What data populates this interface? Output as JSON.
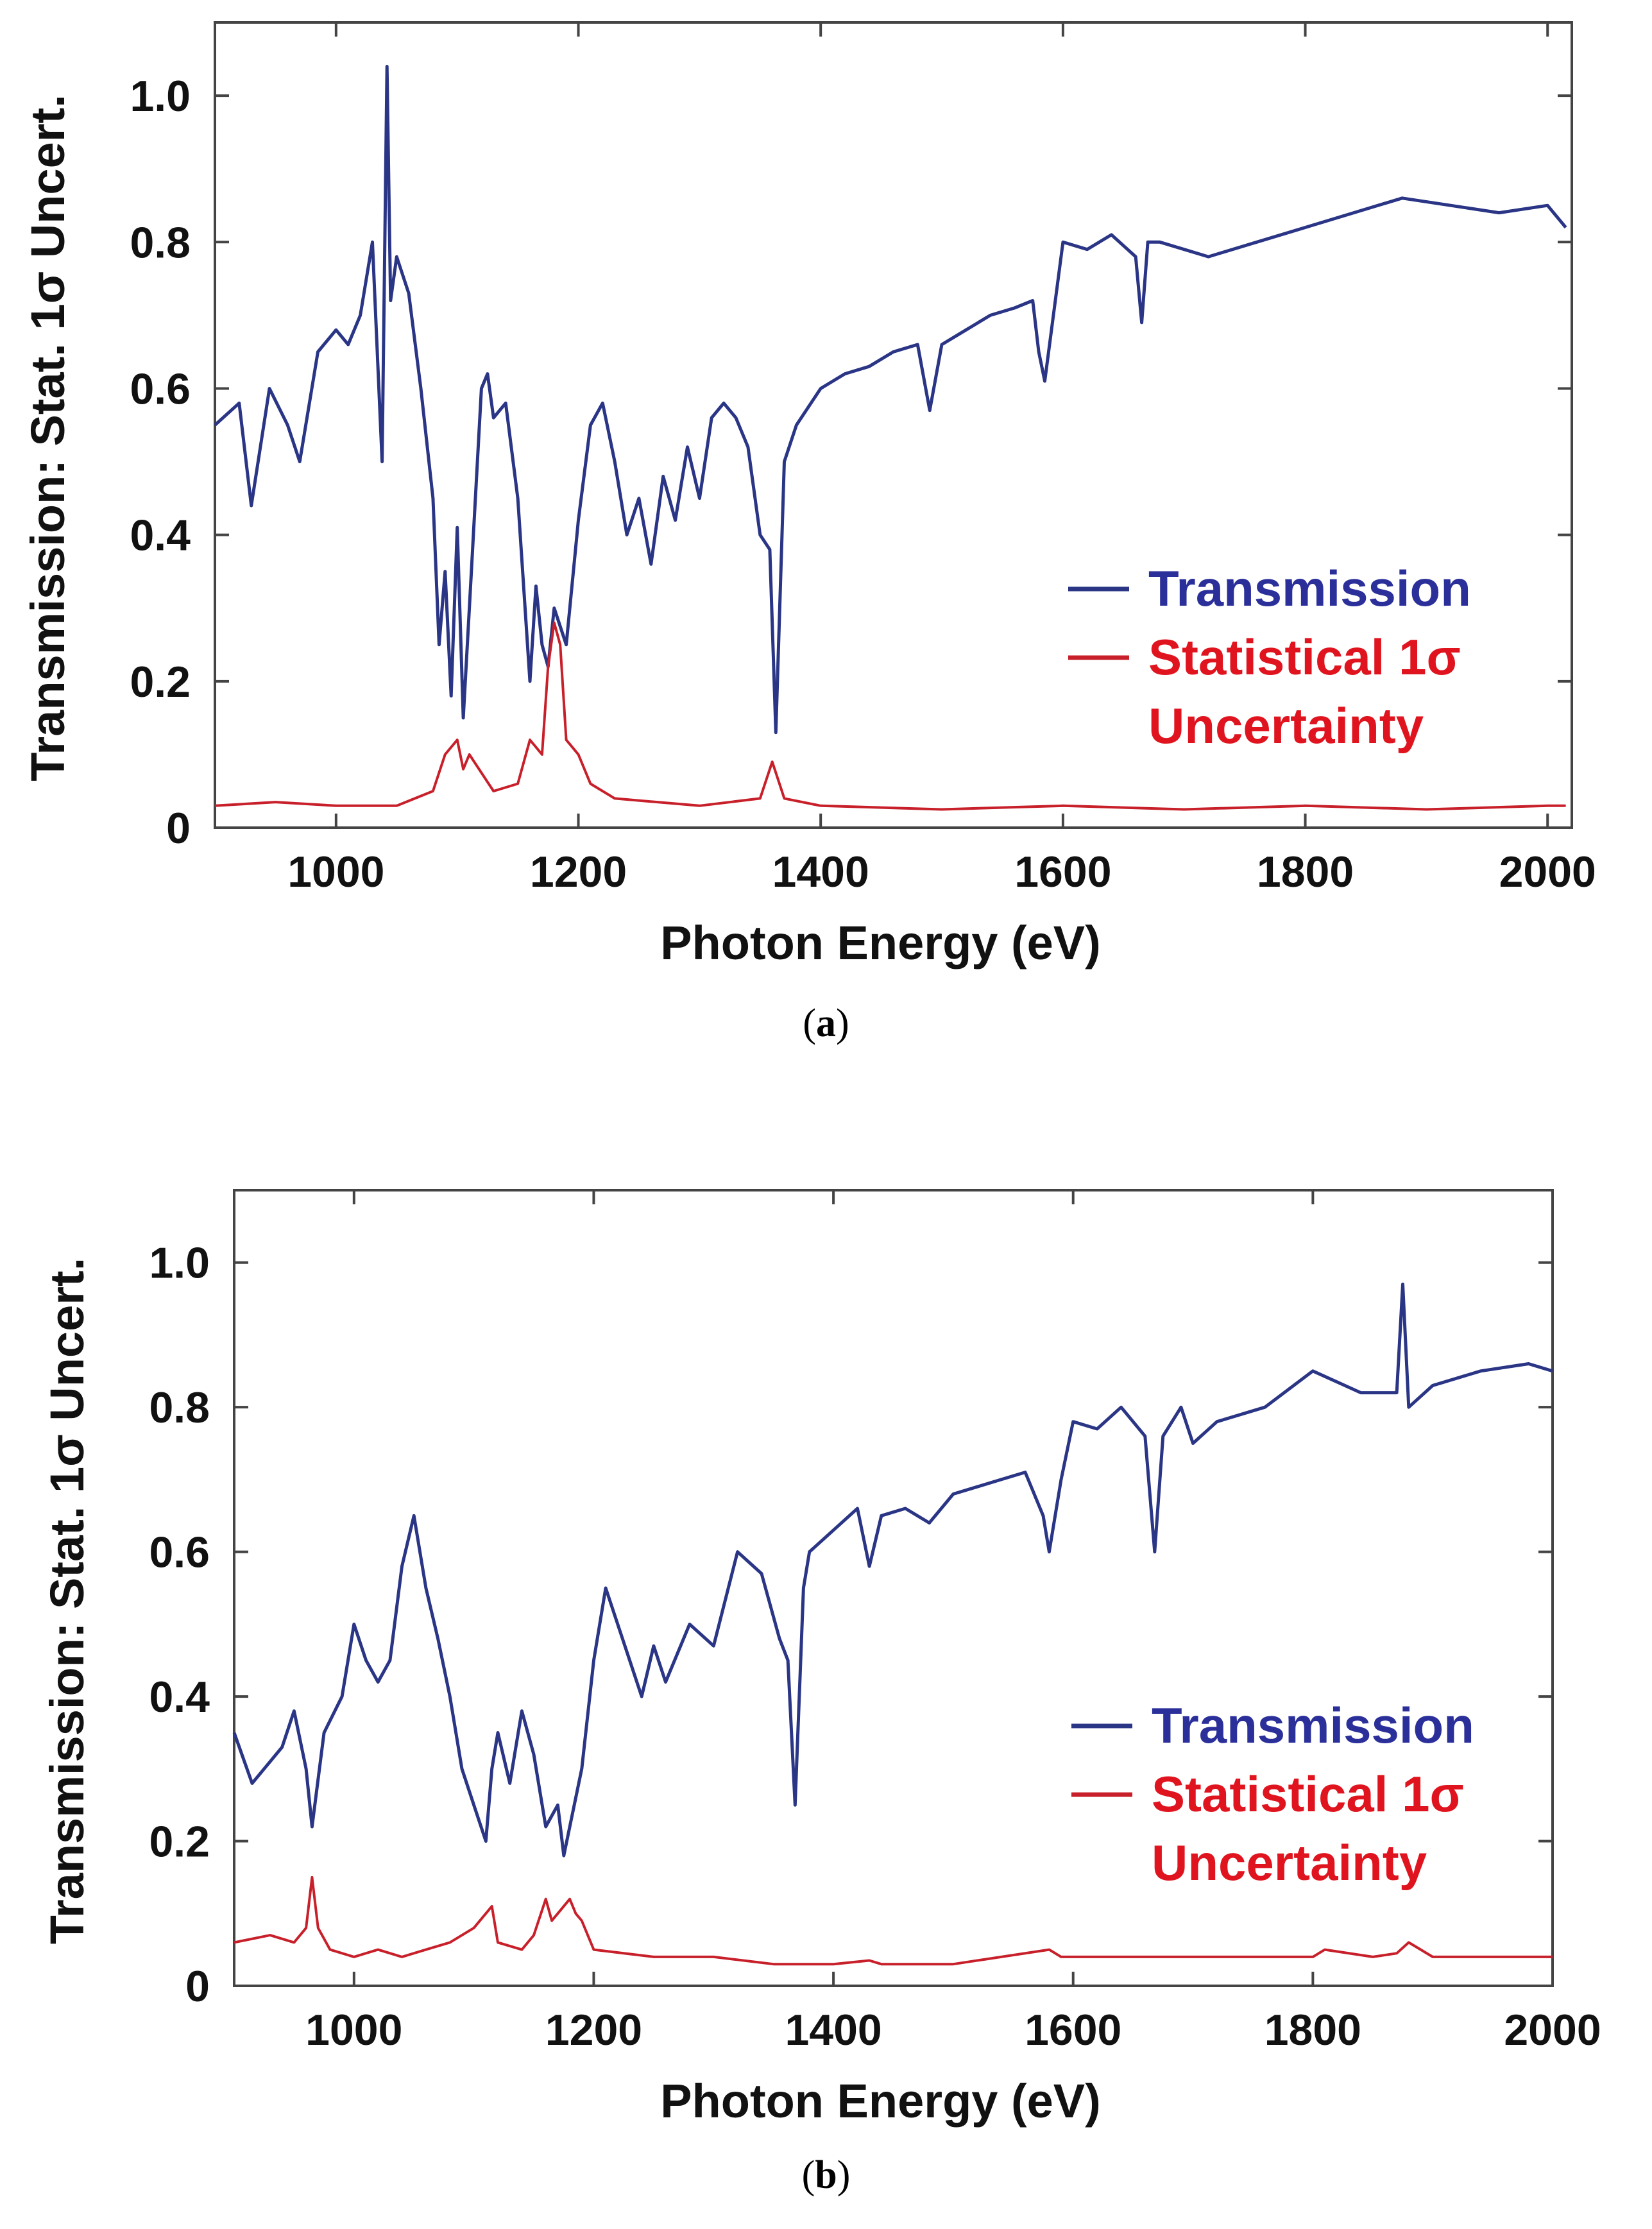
{
  "colors": {
    "transmission": "#2a3585",
    "uncertainty": "#c8202a",
    "legend_transmission_text": "#2b2f9a",
    "legend_uncertainty_text": "#e0141e",
    "frame": "#444444"
  },
  "chart_data": [
    {
      "id": "a",
      "type": "line",
      "caption": "a",
      "xlabel": "Photon Energy (eV)",
      "ylabel": "Transmission: Stat. 1σ Uncert.",
      "xlim": [
        900,
        2020
      ],
      "ylim": [
        0,
        1.1
      ],
      "x_ticks": [
        "1000",
        "1200",
        "1400",
        "1600",
        "1800",
        "2000"
      ],
      "y_ticks": [
        "0",
        "0.2",
        "0.4",
        "0.6",
        "0.8",
        "1.0"
      ],
      "legend": {
        "position": "right",
        "transmission": "Transmission",
        "uncertainty_line1": "Statistical 1σ",
        "uncertainty_line2": "Uncertainty"
      },
      "series": [
        {
          "name": "Transmission",
          "x": [
            900,
            920,
            930,
            945,
            960,
            970,
            985,
            1000,
            1010,
            1020,
            1030,
            1038,
            1042,
            1045,
            1050,
            1060,
            1070,
            1080,
            1085,
            1090,
            1095,
            1100,
            1105,
            1110,
            1120,
            1125,
            1130,
            1140,
            1150,
            1160,
            1165,
            1170,
            1175,
            1180,
            1190,
            1200,
            1210,
            1220,
            1230,
            1240,
            1250,
            1260,
            1270,
            1280,
            1290,
            1300,
            1310,
            1320,
            1330,
            1340,
            1350,
            1358,
            1363,
            1370,
            1380,
            1400,
            1420,
            1440,
            1460,
            1480,
            1490,
            1500,
            1520,
            1540,
            1560,
            1575,
            1580,
            1585,
            1600,
            1620,
            1640,
            1660,
            1665,
            1670,
            1680,
            1700,
            1720,
            1760,
            1800,
            1840,
            1880,
            1920,
            1960,
            2000,
            2015
          ],
          "values": [
            0.55,
            0.58,
            0.44,
            0.6,
            0.55,
            0.5,
            0.65,
            0.68,
            0.66,
            0.7,
            0.8,
            0.5,
            1.04,
            0.72,
            0.78,
            0.73,
            0.6,
            0.45,
            0.25,
            0.35,
            0.18,
            0.41,
            0.15,
            0.3,
            0.6,
            0.62,
            0.56,
            0.58,
            0.45,
            0.2,
            0.33,
            0.25,
            0.22,
            0.3,
            0.25,
            0.42,
            0.55,
            0.58,
            0.5,
            0.4,
            0.45,
            0.36,
            0.48,
            0.42,
            0.52,
            0.45,
            0.56,
            0.58,
            0.56,
            0.52,
            0.4,
            0.38,
            0.13,
            0.5,
            0.55,
            0.6,
            0.62,
            0.63,
            0.65,
            0.66,
            0.57,
            0.66,
            0.68,
            0.7,
            0.71,
            0.72,
            0.65,
            0.61,
            0.8,
            0.79,
            0.81,
            0.78,
            0.69,
            0.8,
            0.8,
            0.79,
            0.78,
            0.8,
            0.82,
            0.84,
            0.86,
            0.85,
            0.84,
            0.85,
            0.82
          ]
        },
        {
          "name": "Statistical 1σ Uncertainty",
          "x": [
            900,
            950,
            1000,
            1050,
            1080,
            1090,
            1100,
            1105,
            1110,
            1130,
            1150,
            1160,
            1170,
            1175,
            1180,
            1185,
            1190,
            1200,
            1210,
            1230,
            1300,
            1350,
            1360,
            1370,
            1400,
            1500,
            1600,
            1700,
            1800,
            1900,
            2000,
            2015
          ],
          "values": [
            0.03,
            0.035,
            0.03,
            0.03,
            0.05,
            0.1,
            0.12,
            0.08,
            0.1,
            0.05,
            0.06,
            0.12,
            0.1,
            0.22,
            0.28,
            0.25,
            0.12,
            0.1,
            0.06,
            0.04,
            0.03,
            0.04,
            0.09,
            0.04,
            0.03,
            0.025,
            0.03,
            0.025,
            0.03,
            0.025,
            0.03,
            0.03
          ]
        }
      ]
    },
    {
      "id": "b",
      "type": "line",
      "caption": "b",
      "xlabel": "Photon Energy (eV)",
      "ylabel": "Transmission: Stat. 1σ Uncert.",
      "xlim": [
        900,
        2000
      ],
      "ylim": [
        0,
        1.1
      ],
      "x_ticks": [
        "1000",
        "1200",
        "1400",
        "1600",
        "1800",
        "2000"
      ],
      "y_ticks": [
        "0",
        "0.2",
        "0.4",
        "0.6",
        "0.8",
        "1.0"
      ],
      "legend": {
        "position": "right",
        "transmission": "Transmission",
        "uncertainty_line1": "Statistical 1σ",
        "uncertainty_line2": "Uncertainty"
      },
      "series": [
        {
          "name": "Transmission",
          "x": [
            900,
            915,
            925,
            940,
            950,
            960,
            965,
            975,
            990,
            1000,
            1010,
            1020,
            1030,
            1040,
            1050,
            1060,
            1070,
            1080,
            1090,
            1100,
            1110,
            1115,
            1120,
            1130,
            1140,
            1150,
            1160,
            1170,
            1175,
            1180,
            1190,
            1200,
            1210,
            1220,
            1230,
            1240,
            1250,
            1260,
            1280,
            1300,
            1320,
            1340,
            1355,
            1362,
            1368,
            1375,
            1380,
            1400,
            1420,
            1430,
            1440,
            1460,
            1480,
            1500,
            1520,
            1540,
            1560,
            1575,
            1580,
            1590,
            1600,
            1620,
            1640,
            1660,
            1668,
            1675,
            1690,
            1700,
            1720,
            1760,
            1800,
            1840,
            1870,
            1875,
            1880,
            1900,
            1940,
            1980,
            2000
          ],
          "values": [
            0.35,
            0.28,
            0.3,
            0.33,
            0.38,
            0.3,
            0.22,
            0.35,
            0.4,
            0.5,
            0.45,
            0.42,
            0.45,
            0.58,
            0.65,
            0.55,
            0.48,
            0.4,
            0.3,
            0.25,
            0.2,
            0.3,
            0.35,
            0.28,
            0.38,
            0.32,
            0.22,
            0.25,
            0.18,
            0.22,
            0.3,
            0.45,
            0.55,
            0.5,
            0.45,
            0.4,
            0.47,
            0.42,
            0.5,
            0.47,
            0.6,
            0.57,
            0.48,
            0.45,
            0.25,
            0.55,
            0.6,
            0.63,
            0.66,
            0.58,
            0.65,
            0.66,
            0.64,
            0.68,
            0.69,
            0.7,
            0.71,
            0.65,
            0.6,
            0.7,
            0.78,
            0.77,
            0.8,
            0.76,
            0.6,
            0.76,
            0.8,
            0.75,
            0.78,
            0.8,
            0.85,
            0.82,
            0.82,
            0.97,
            0.8,
            0.83,
            0.85,
            0.86,
            0.85
          ]
        },
        {
          "name": "Statistical 1σ Uncertainty",
          "x": [
            900,
            930,
            950,
            960,
            965,
            970,
            980,
            1000,
            1020,
            1040,
            1060,
            1080,
            1100,
            1110,
            1115,
            1120,
            1140,
            1150,
            1160,
            1165,
            1170,
            1180,
            1185,
            1190,
            1200,
            1250,
            1300,
            1350,
            1400,
            1430,
            1440,
            1500,
            1580,
            1590,
            1600,
            1700,
            1800,
            1810,
            1850,
            1870,
            1880,
            1900,
            2000
          ],
          "values": [
            0.06,
            0.07,
            0.06,
            0.08,
            0.15,
            0.08,
            0.05,
            0.04,
            0.05,
            0.04,
            0.05,
            0.06,
            0.08,
            0.1,
            0.11,
            0.06,
            0.05,
            0.07,
            0.12,
            0.09,
            0.1,
            0.12,
            0.1,
            0.09,
            0.05,
            0.04,
            0.04,
            0.03,
            0.03,
            0.035,
            0.03,
            0.03,
            0.05,
            0.04,
            0.04,
            0.04,
            0.04,
            0.05,
            0.04,
            0.045,
            0.06,
            0.04,
            0.04
          ]
        }
      ]
    }
  ]
}
